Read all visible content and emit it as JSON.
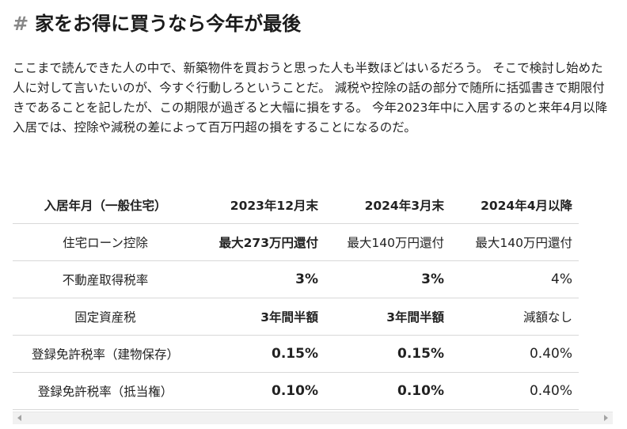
{
  "heading": {
    "hash": "#",
    "text": "家をお得に買うなら今年が最後"
  },
  "paragraph": "ここまで読んできた人の中で、新築物件を買おうと思った人も半数ほどはいるだろう。 そこで検討し始めた人に対して言いたいのが、今すぐ行動しろということだ。 減税や控除の話の部分で随所に括弧書きで期限付きであることを記したが、この期限が過ぎると大幅に損をする。 今年2023年中に入居するのと来年4月以降入居では、控除や減税の差によって百万円超の損をすることになるのだ。",
  "table": {
    "headers": [
      "入居年月（一般住宅）",
      "2023年12月末",
      "2024年3月末",
      "2024年4月以降"
    ],
    "rows": [
      {
        "label": "住宅ローン控除",
        "c1": "最大273万円還付",
        "c2": "最大140万円還付",
        "c3": "最大140万円還付"
      },
      {
        "label": "不動産取得税率",
        "c1": "3%",
        "c2": "3%",
        "c3": "4%"
      },
      {
        "label": "固定資産税",
        "c1": "3年間半額",
        "c2": "3年間半額",
        "c3": "減額なし"
      },
      {
        "label": "登録免許税率（建物保存）",
        "c1": "0.15%",
        "c2": "0.15%",
        "c3": "0.40%"
      },
      {
        "label": "登録免許税率（抵当権）",
        "c1": "0.10%",
        "c2": "0.10%",
        "c3": "0.40%"
      }
    ]
  },
  "icons": {
    "scroll_left": "chevron-left-icon",
    "scroll_right": "chevron-right-icon"
  }
}
